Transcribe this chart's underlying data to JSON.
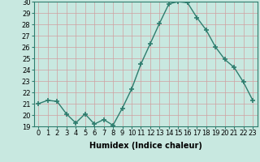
{
  "x": [
    0,
    1,
    2,
    3,
    4,
    5,
    6,
    7,
    8,
    9,
    10,
    11,
    12,
    13,
    14,
    15,
    16,
    17,
    18,
    19,
    20,
    21,
    22,
    23
  ],
  "y": [
    21.0,
    21.3,
    21.2,
    20.1,
    19.3,
    20.1,
    19.2,
    19.6,
    19.1,
    20.6,
    22.3,
    24.5,
    26.3,
    28.1,
    29.8,
    30.0,
    29.9,
    28.6,
    27.5,
    26.0,
    24.9,
    24.2,
    22.9,
    21.3
  ],
  "line_color": "#2e7d6e",
  "marker": "+",
  "marker_size": 4,
  "marker_lw": 1.2,
  "bg_color": "#c8e8e0",
  "grid_color": "#d0a0a0",
  "xlabel": "Humidex (Indice chaleur)",
  "ylim": [
    19,
    30
  ],
  "xlim": [
    -0.5,
    23.5
  ],
  "yticks": [
    19,
    20,
    21,
    22,
    23,
    24,
    25,
    26,
    27,
    28,
    29,
    30
  ],
  "xticks": [
    0,
    1,
    2,
    3,
    4,
    5,
    6,
    7,
    8,
    9,
    10,
    11,
    12,
    13,
    14,
    15,
    16,
    17,
    18,
    19,
    20,
    21,
    22,
    23
  ],
  "xlabel_fontsize": 7,
  "tick_fontsize": 6,
  "line_width": 1.0
}
